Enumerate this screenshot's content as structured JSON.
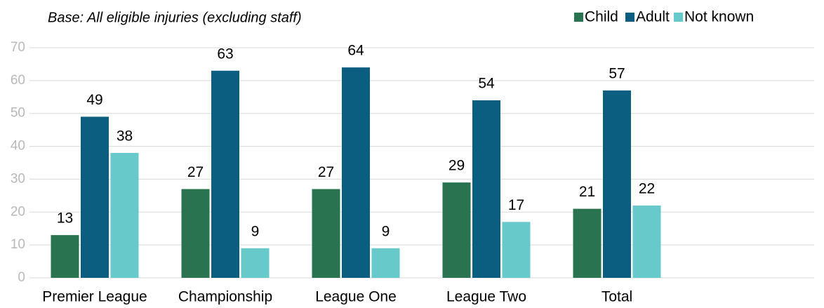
{
  "chart_data": {
    "type": "bar",
    "subtitle": "Base: All eligible injuries (excluding staff)",
    "categories": [
      "Premier League",
      "Championship",
      "League One",
      "League Two",
      "Total"
    ],
    "series": [
      {
        "name": "Child",
        "color": "#2a7350",
        "values": [
          13,
          27,
          27,
          29,
          21
        ]
      },
      {
        "name": "Adult",
        "color": "#0b5e80",
        "values": [
          49,
          63,
          64,
          54,
          57
        ]
      },
      {
        "name": "Not known",
        "color": "#67c9c9",
        "values": [
          38,
          9,
          9,
          17,
          22
        ]
      }
    ],
    "ylim": [
      0,
      70
    ],
    "yticks": [
      0,
      10,
      20,
      30,
      40,
      50,
      60,
      70
    ],
    "grid": true,
    "legend": "top-right"
  }
}
